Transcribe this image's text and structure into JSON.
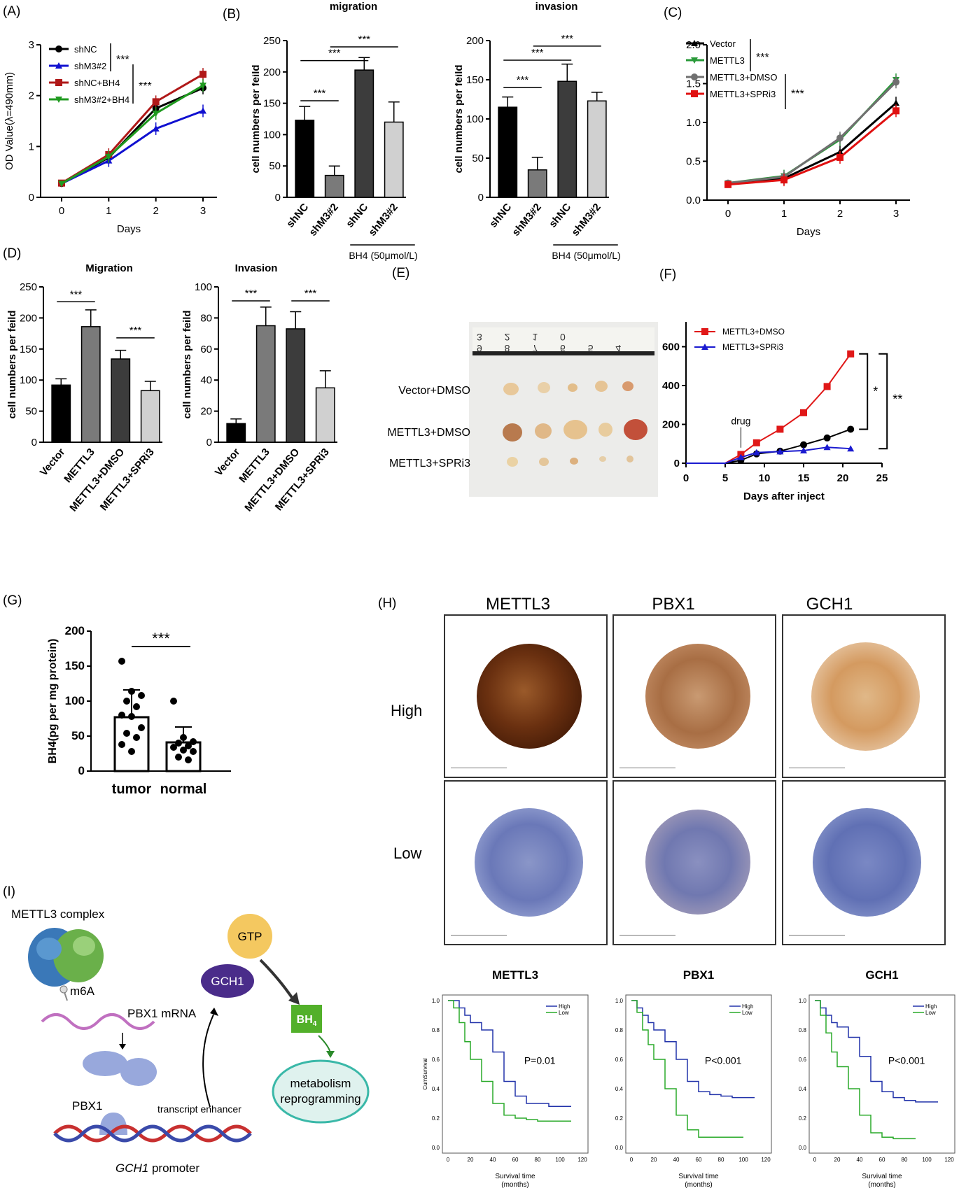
{
  "panels": {
    "A": {
      "label": "(A)"
    },
    "B": {
      "label": "(B)"
    },
    "C": {
      "label": "(C)"
    },
    "D": {
      "label": "(D)"
    },
    "E": {
      "label": "(E)"
    },
    "F": {
      "label": "(F)"
    },
    "G": {
      "label": "(G)"
    },
    "H": {
      "label": "(H)"
    },
    "I": {
      "label": "(I)"
    }
  },
  "chart_data": [
    {
      "id": "A",
      "type": "line",
      "xlabel": "Days",
      "ylabel": "OD Value(λ=490mm)",
      "x": [
        0,
        1,
        2,
        3
      ],
      "xlim": [
        0,
        3
      ],
      "ylim": [
        0,
        3
      ],
      "yticks": [
        0,
        1,
        2,
        3
      ],
      "series": [
        {
          "name": "shNC",
          "color": "#000000",
          "marker": "circle",
          "values": [
            0.27,
            0.78,
            1.75,
            2.15
          ]
        },
        {
          "name": "shM3#2",
          "color": "#1010d0",
          "marker": "triangle",
          "values": [
            0.27,
            0.72,
            1.35,
            1.7
          ]
        },
        {
          "name": "shNC+BH4",
          "color": "#b01818",
          "marker": "square",
          "values": [
            0.28,
            0.84,
            1.88,
            2.42
          ]
        },
        {
          "name": "shM3#2+BH4",
          "color": "#1f9a1f",
          "marker": "triangle-down",
          "values": [
            0.27,
            0.8,
            1.65,
            2.2
          ]
        }
      ],
      "annotations": [
        "***",
        "***"
      ]
    },
    {
      "id": "B1",
      "type": "bar",
      "title": "migration",
      "ylabel": "cell numbers per feild",
      "categories": [
        "shNC",
        "shM3#2",
        "shNC",
        "shM3#2"
      ],
      "values": [
        123,
        35,
        203,
        120
      ],
      "errors": [
        22,
        15,
        20,
        32
      ],
      "colors": [
        "#000000",
        "#7a7a7a",
        "#3c3c3c",
        "#d0d0d0"
      ],
      "ylim": [
        0,
        250
      ],
      "yticks": [
        0,
        50,
        100,
        150,
        200,
        250
      ],
      "group_label": "BH4 (50μmol/L)",
      "sig": [
        "***",
        "***",
        "***"
      ]
    },
    {
      "id": "B2",
      "type": "bar",
      "title": "invasion",
      "ylabel": "cell numbers per feild",
      "categories": [
        "shNC",
        "shM3#2",
        "shNC",
        "shM3#2"
      ],
      "values": [
        115,
        35,
        148,
        123
      ],
      "errors": [
        13,
        16,
        22,
        11
      ],
      "colors": [
        "#000000",
        "#7a7a7a",
        "#3c3c3c",
        "#d0d0d0"
      ],
      "ylim": [
        0,
        200
      ],
      "yticks": [
        0,
        50,
        100,
        150,
        200
      ],
      "group_label": "BH4 (50μmol/L)",
      "sig": [
        "***",
        "***",
        "***"
      ]
    },
    {
      "id": "C",
      "type": "line",
      "xlabel": "Days",
      "ylabel": "OD Value(λ=450mm)",
      "x": [
        0,
        1,
        2,
        3
      ],
      "xlim": [
        0,
        3
      ],
      "ylim": [
        0,
        2.0
      ],
      "yticks": [
        0.0,
        0.5,
        1.0,
        1.5,
        2.0
      ],
      "series": [
        {
          "name": "Vector",
          "color": "#000000",
          "marker": "triangle",
          "values": [
            0.21,
            0.28,
            0.62,
            1.25
          ]
        },
        {
          "name": "METTL3",
          "color": "#2a9a3a",
          "marker": "triangle-down",
          "values": [
            0.22,
            0.31,
            0.78,
            1.55
          ]
        },
        {
          "name": "METTL3+DMSO",
          "color": "#707070",
          "marker": "circle",
          "values": [
            0.22,
            0.3,
            0.8,
            1.52
          ]
        },
        {
          "name": "METTL3+SPRi3",
          "color": "#e01010",
          "marker": "square",
          "values": [
            0.2,
            0.26,
            0.55,
            1.15
          ]
        }
      ],
      "annotations": [
        "***",
        "***"
      ]
    },
    {
      "id": "D1",
      "type": "bar",
      "title": "Migration",
      "ylabel": "cell numbers per feild",
      "categories": [
        "Vector",
        "METTL3",
        "METTL3+DMSO",
        "METTL3+SPRi3"
      ],
      "values": [
        92,
        186,
        134,
        83
      ],
      "errors": [
        10,
        27,
        14,
        15
      ],
      "colors": [
        "#000000",
        "#7a7a7a",
        "#3c3c3c",
        "#d0d0d0"
      ],
      "ylim": [
        0,
        250
      ],
      "yticks": [
        0,
        50,
        100,
        150,
        200,
        250
      ],
      "sig": [
        "***",
        "***"
      ]
    },
    {
      "id": "D2",
      "type": "bar",
      "title": "Invasion",
      "ylabel": "cell numbers per feild",
      "categories": [
        "Vector",
        "METTL3",
        "METTL3+DMSO",
        "METTL3+SPRi3"
      ],
      "values": [
        12,
        75,
        73,
        35
      ],
      "errors": [
        3,
        12,
        11,
        11
      ],
      "colors": [
        "#000000",
        "#7a7a7a",
        "#3c3c3c",
        "#d0d0d0"
      ],
      "ylim": [
        0,
        100
      ],
      "yticks": [
        0,
        20,
        40,
        60,
        80,
        100
      ],
      "sig": [
        "***",
        "***"
      ]
    },
    {
      "id": "F",
      "type": "line",
      "xlabel": "Days after inject",
      "ylabel": "tumor volume (mm³)",
      "xlim": [
        0,
        25
      ],
      "ylim": [
        0,
        800
      ],
      "xticks": [
        0,
        5,
        10,
        15,
        20,
        25
      ],
      "yticks": [
        0,
        200,
        400,
        600,
        800
      ],
      "series": [
        {
          "name": "Vector+DMSO",
          "color": "#000000",
          "marker": "circle",
          "x": [
            0,
            5,
            7,
            9,
            12,
            15,
            18,
            21
          ],
          "values": [
            0,
            0,
            15,
            48,
            62,
            95,
            130,
            175
          ]
        },
        {
          "name": "METTL3+DMSO",
          "color": "#e01818",
          "marker": "square",
          "x": [
            0,
            5,
            7,
            9,
            12,
            15,
            18,
            21
          ],
          "values": [
            0,
            0,
            45,
            105,
            175,
            260,
            395,
            563
          ]
        },
        {
          "name": "METTL3+SPRi3",
          "color": "#1a1ad0",
          "marker": "triangle",
          "x": [
            0,
            5,
            7,
            9,
            12,
            15,
            18,
            21
          ],
          "values": [
            0,
            0,
            30,
            55,
            60,
            65,
            82,
            75
          ]
        }
      ],
      "annotations": [
        "drug",
        "*",
        "**"
      ]
    },
    {
      "id": "G",
      "type": "bar",
      "ylabel": "BH4(pg per mg protein)",
      "categories": [
        "tumor",
        "normal"
      ],
      "values": [
        77,
        41
      ],
      "errors": [
        39,
        22
      ],
      "ylim": [
        0,
        200
      ],
      "yticks": [
        0,
        50,
        100,
        150,
        200
      ],
      "points": [
        [
          157,
          114,
          108,
          100,
          92,
          80,
          78,
          62,
          54,
          48,
          38,
          28
        ],
        [
          100,
          48,
          42,
          40,
          36,
          34,
          30,
          28,
          20,
          16
        ]
      ],
      "sig": "***"
    },
    {
      "id": "KM1",
      "type": "line",
      "title": "METTL3",
      "xlabel": "Survival time",
      "xlabel2": "(months)",
      "ylabel": "CumSurvival",
      "xlim": [
        0,
        120
      ],
      "ylim": [
        0,
        1.0
      ],
      "xticks": [
        0,
        10,
        20,
        30,
        40,
        50,
        60,
        70,
        80,
        90,
        100,
        110,
        120
      ],
      "yticks": [
        0.0,
        0.2,
        0.4,
        0.6,
        0.8,
        1.0
      ],
      "series": [
        {
          "name": "High",
          "color": "#2233aa",
          "x": [
            0,
            5,
            10,
            15,
            20,
            30,
            40,
            50,
            60,
            70,
            80,
            90,
            100,
            110
          ],
          "values": [
            1.0,
            1.0,
            0.95,
            0.9,
            0.85,
            0.8,
            0.65,
            0.45,
            0.35,
            0.3,
            0.3,
            0.28,
            0.28,
            0.28
          ]
        },
        {
          "name": "Low",
          "color": "#2aaa2a",
          "x": [
            0,
            5,
            10,
            15,
            20,
            30,
            40,
            50,
            60,
            70,
            80,
            90,
            100,
            110
          ],
          "values": [
            1.0,
            0.95,
            0.85,
            0.72,
            0.6,
            0.45,
            0.3,
            0.22,
            0.2,
            0.19,
            0.18,
            0.18,
            0.18,
            0.18
          ]
        }
      ],
      "p": "P=0.01"
    },
    {
      "id": "KM2",
      "type": "line",
      "title": "PBX1",
      "xlabel": "Survival time",
      "xlabel2": "(months)",
      "ylabel": "",
      "xlim": [
        0,
        120
      ],
      "ylim": [
        0,
        1.0
      ],
      "xticks": [
        0,
        10,
        20,
        30,
        40,
        50,
        60,
        70,
        80,
        90,
        100,
        110,
        120
      ],
      "yticks": [
        0.0,
        0.2,
        0.4,
        0.6,
        0.8,
        1.0
      ],
      "series": [
        {
          "name": "High",
          "color": "#2233aa",
          "x": [
            0,
            5,
            10,
            15,
            20,
            30,
            40,
            50,
            60,
            70,
            80,
            90,
            100,
            110
          ],
          "values": [
            1.0,
            0.95,
            0.9,
            0.85,
            0.8,
            0.72,
            0.6,
            0.45,
            0.38,
            0.36,
            0.35,
            0.34,
            0.34,
            0.34
          ]
        },
        {
          "name": "Low",
          "color": "#2aaa2a",
          "x": [
            0,
            5,
            10,
            15,
            20,
            30,
            40,
            50,
            60,
            70,
            80,
            90,
            100
          ],
          "values": [
            1.0,
            0.92,
            0.8,
            0.7,
            0.6,
            0.4,
            0.22,
            0.12,
            0.07,
            0.07,
            0.07,
            0.07,
            0.07
          ]
        }
      ],
      "p": "P<0.001"
    },
    {
      "id": "KM3",
      "type": "line",
      "title": "GCH1",
      "xlabel": "Survival time",
      "xlabel2": "(months)",
      "ylabel": "",
      "xlim": [
        0,
        120
      ],
      "ylim": [
        0,
        1.0
      ],
      "xticks": [
        0,
        10,
        20,
        30,
        40,
        50,
        60,
        70,
        80,
        90,
        100,
        110,
        120
      ],
      "yticks": [
        0.0,
        0.2,
        0.4,
        0.6,
        0.8,
        1.0
      ],
      "series": [
        {
          "name": "High",
          "color": "#2233aa",
          "x": [
            0,
            5,
            10,
            15,
            20,
            30,
            40,
            50,
            60,
            70,
            80,
            90,
            100,
            110
          ],
          "values": [
            1.0,
            0.95,
            0.9,
            0.85,
            0.82,
            0.75,
            0.62,
            0.45,
            0.38,
            0.34,
            0.32,
            0.31,
            0.31,
            0.31
          ]
        },
        {
          "name": "Low",
          "color": "#2aaa2a",
          "x": [
            0,
            5,
            10,
            15,
            20,
            30,
            40,
            50,
            60,
            70,
            80,
            90
          ],
          "values": [
            1.0,
            0.9,
            0.78,
            0.65,
            0.55,
            0.4,
            0.22,
            0.1,
            0.07,
            0.06,
            0.06,
            0.06
          ]
        }
      ],
      "p": "P<0.001"
    }
  ],
  "E": {
    "rows": [
      "Vector+DMSO",
      "METTL3+DMSO",
      "METTL3+SPRi3"
    ],
    "ruler": "9 8 7 6 5 4 3 2 1 0"
  },
  "H": {
    "columns": [
      "METTL3",
      "PBX1",
      "GCH1"
    ],
    "rows": [
      "High",
      "Low"
    ]
  },
  "I": {
    "complex": "METTL3 complex",
    "m6a": "m6A",
    "mrna": "PBX1 mRNA",
    "pbx1": "PBX1",
    "enhancer": "transcript enhancer",
    "promoter": "GCH1 promoter",
    "promoter_gene": "GCH1",
    "promoter_word": "promoter",
    "gch1": "GCH1",
    "gtp": "GTP",
    "bh4": "BH4",
    "bh4_main": "BH",
    "bh4_sub": "4",
    "meta1": "metabolism",
    "meta2": "reprogramming",
    "colors": {
      "gch1": "#4a2c8a",
      "bh4": "#52b02a",
      "meta": "#3ab8a8",
      "gtp": "#f4c860"
    }
  }
}
